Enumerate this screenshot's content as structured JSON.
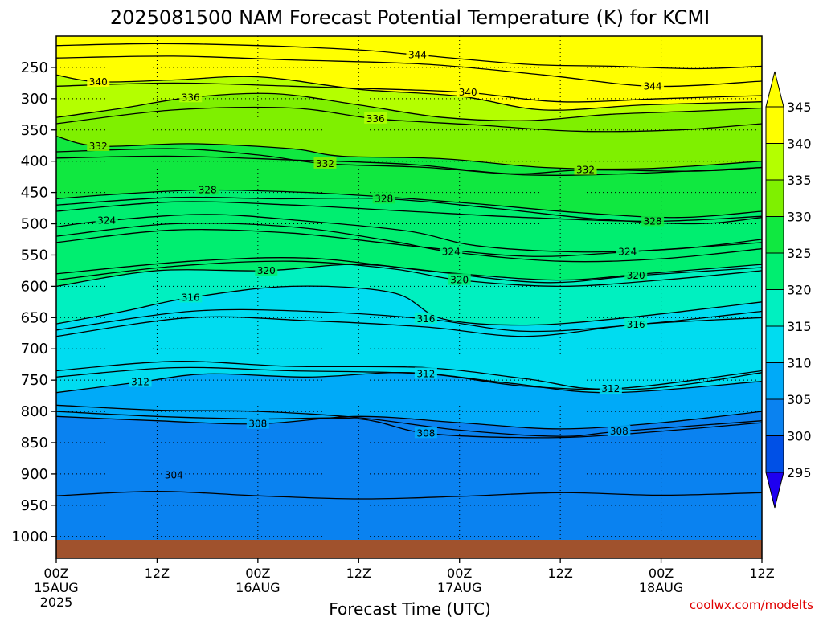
{
  "chart_data": {
    "type": "heatmap",
    "title": "2025081500 NAM Forecast Potential Temperature (K) for KCMI",
    "xlabel": "Forecast Time (UTC)",
    "ylabel": "",
    "credit": "coolwx.com/modelts",
    "x_ticks": [
      {
        "label": "00Z",
        "date": "15AUG",
        "year": "2025",
        "hours": 0
      },
      {
        "label": "12Z",
        "date": "",
        "year": "",
        "hours": 12
      },
      {
        "label": "00Z",
        "date": "16AUG",
        "year": "",
        "hours": 24
      },
      {
        "label": "12Z",
        "date": "",
        "year": "",
        "hours": 36
      },
      {
        "label": "00Z",
        "date": "17AUG",
        "year": "",
        "hours": 48
      },
      {
        "label": "12Z",
        "date": "",
        "year": "",
        "hours": 60
      },
      {
        "label": "00Z",
        "date": "18AUG",
        "year": "",
        "hours": 72
      },
      {
        "label": "12Z",
        "date": "",
        "year": "",
        "hours": 84
      }
    ],
    "y_ticks": [
      250,
      300,
      350,
      400,
      450,
      500,
      550,
      600,
      650,
      700,
      750,
      800,
      850,
      900,
      950,
      1000
    ],
    "y_range_hpa": [
      200,
      1035
    ],
    "x_range_hours": [
      0,
      84
    ],
    "grid": true,
    "colorbar": {
      "levels": [
        295,
        300,
        305,
        310,
        315,
        320,
        325,
        330,
        335,
        340,
        345
      ],
      "labels": [
        "295",
        "300",
        "305",
        "310",
        "315",
        "320",
        "325",
        "330",
        "335",
        "340",
        "345"
      ],
      "colors": [
        "#1e00f0",
        "#0050e6",
        "#0a82f0",
        "#00aaf8",
        "#00dcf0",
        "#00f0c0",
        "#00ee70",
        "#10e840",
        "#7ff000",
        "#b4ff00",
        "#ffff00",
        "#ffff00"
      ],
      "legend_position": "right"
    },
    "ground_color": "#a0522d",
    "contours": [
      {
        "value": 304,
        "label": "304",
        "hours": 14,
        "pressure": 902,
        "p": [
          [
            0,
            935
          ],
          [
            12,
            928
          ],
          [
            24,
            935
          ],
          [
            36,
            940
          ],
          [
            48,
            936
          ],
          [
            60,
            930
          ],
          [
            72,
            934
          ],
          [
            84,
            930
          ]
        ]
      },
      {
        "value": 308,
        "label": "308",
        "hours": 24,
        "pressure": 820,
        "p": [
          [
            0,
            808
          ],
          [
            12,
            815
          ],
          [
            24,
            820
          ],
          [
            36,
            808
          ],
          [
            48,
            818
          ],
          [
            60,
            828
          ],
          [
            72,
            818
          ],
          [
            84,
            800
          ]
        ]
      },
      {
        "value": 308,
        "label": "308",
        "hours": 44,
        "pressure": 835,
        "p": [
          [
            0,
            800
          ],
          [
            12,
            808
          ],
          [
            24,
            812
          ],
          [
            36,
            812
          ],
          [
            44,
            835
          ],
          [
            56,
            842
          ],
          [
            66,
            838
          ],
          [
            84,
            818
          ]
        ]
      },
      {
        "value": 308,
        "label": "308",
        "hours": 67,
        "pressure": 832,
        "p": [
          [
            0,
            790
          ],
          [
            12,
            798
          ],
          [
            24,
            800
          ],
          [
            36,
            810
          ],
          [
            48,
            830
          ],
          [
            60,
            840
          ],
          [
            67,
            832
          ],
          [
            84,
            815
          ]
        ]
      },
      {
        "value": 312,
        "label": "312",
        "hours": 10,
        "pressure": 753,
        "p": [
          [
            0,
            770
          ],
          [
            10,
            753
          ],
          [
            18,
            740
          ],
          [
            30,
            745
          ],
          [
            42,
            738
          ],
          [
            54,
            755
          ],
          [
            66,
            770
          ],
          [
            84,
            752
          ]
        ]
      },
      {
        "value": 312,
        "label": "312",
        "hours": 44,
        "pressure": 740,
        "p": [
          [
            0,
            745
          ],
          [
            14,
            730
          ],
          [
            28,
            735
          ],
          [
            44,
            740
          ],
          [
            56,
            760
          ],
          [
            70,
            764
          ],
          [
            84,
            738
          ]
        ]
      },
      {
        "value": 312,
        "label": "312",
        "hours": 66,
        "pressure": 764,
        "p": [
          [
            0,
            735
          ],
          [
            14,
            720
          ],
          [
            28,
            728
          ],
          [
            44,
            730
          ],
          [
            56,
            748
          ],
          [
            66,
            764
          ],
          [
            84,
            735
          ]
        ]
      },
      {
        "value": 316,
        "label": "316",
        "hours": 16,
        "pressure": 618,
        "p": [
          [
            0,
            660
          ],
          [
            8,
            640
          ],
          [
            16,
            618
          ],
          [
            28,
            600
          ],
          [
            40,
            610
          ],
          [
            46,
            652
          ],
          [
            56,
            662
          ],
          [
            68,
            650
          ],
          [
            84,
            625
          ]
        ]
      },
      {
        "value": 316,
        "label": "316",
        "hours": 44,
        "pressure": 652,
        "p": [
          [
            0,
            670
          ],
          [
            16,
            640
          ],
          [
            30,
            640
          ],
          [
            44,
            652
          ],
          [
            56,
            672
          ],
          [
            70,
            660
          ],
          [
            84,
            640
          ]
        ]
      },
      {
        "value": 316,
        "label": "316",
        "hours": 69,
        "pressure": 661,
        "p": [
          [
            0,
            680
          ],
          [
            16,
            650
          ],
          [
            30,
            655
          ],
          [
            44,
            665
          ],
          [
            56,
            680
          ],
          [
            69,
            661
          ],
          [
            84,
            650
          ]
        ]
      },
      {
        "value": 320,
        "label": "320",
        "hours": 25,
        "pressure": 575,
        "p": [
          [
            0,
            600
          ],
          [
            12,
            575
          ],
          [
            25,
            575
          ],
          [
            36,
            565
          ],
          [
            48,
            580
          ],
          [
            60,
            590
          ],
          [
            70,
            580
          ],
          [
            84,
            565
          ]
        ]
      },
      {
        "value": 320,
        "label": "320",
        "hours": 48,
        "pressure": 590,
        "p": [
          [
            0,
            590
          ],
          [
            14,
            568
          ],
          [
            28,
            560
          ],
          [
            40,
            572
          ],
          [
            48,
            590
          ],
          [
            60,
            600
          ],
          [
            72,
            590
          ],
          [
            84,
            575
          ]
        ]
      },
      {
        "value": 320,
        "label": "320",
        "hours": 69,
        "pressure": 583,
        "p": [
          [
            0,
            580
          ],
          [
            16,
            560
          ],
          [
            30,
            555
          ],
          [
            44,
            575
          ],
          [
            58,
            594
          ],
          [
            69,
            583
          ],
          [
            84,
            570
          ]
        ]
      },
      {
        "value": 324,
        "label": "324",
        "hours": 6,
        "pressure": 495,
        "p": [
          [
            0,
            505
          ],
          [
            6,
            495
          ],
          [
            18,
            485
          ],
          [
            30,
            496
          ],
          [
            42,
            512
          ],
          [
            50,
            535
          ],
          [
            62,
            545
          ],
          [
            74,
            540
          ],
          [
            84,
            525
          ]
        ]
      },
      {
        "value": 324,
        "label": "324",
        "hours": 47,
        "pressure": 545,
        "p": [
          [
            0,
            520
          ],
          [
            14,
            500
          ],
          [
            28,
            505
          ],
          [
            40,
            528
          ],
          [
            47,
            545
          ],
          [
            60,
            560
          ],
          [
            72,
            556
          ],
          [
            84,
            540
          ]
        ]
      },
      {
        "value": 324,
        "label": "324",
        "hours": 68,
        "pressure": 545,
        "p": [
          [
            0,
            530
          ],
          [
            14,
            510
          ],
          [
            28,
            515
          ],
          [
            42,
            535
          ],
          [
            56,
            552
          ],
          [
            68,
            545
          ],
          [
            84,
            530
          ]
        ]
      },
      {
        "value": 328,
        "label": "328",
        "hours": 18,
        "pressure": 446,
        "p": [
          [
            0,
            460
          ],
          [
            8,
            452
          ],
          [
            18,
            446
          ],
          [
            30,
            450
          ],
          [
            40,
            458
          ],
          [
            50,
            468
          ],
          [
            62,
            482
          ],
          [
            74,
            490
          ],
          [
            84,
            480
          ]
        ]
      },
      {
        "value": 328,
        "label": "328",
        "hours": 39,
        "pressure": 460,
        "p": [
          [
            0,
            470
          ],
          [
            14,
            458
          ],
          [
            26,
            460
          ],
          [
            39,
            460
          ],
          [
            52,
            475
          ],
          [
            64,
            492
          ],
          [
            76,
            500
          ],
          [
            84,
            490
          ]
        ]
      },
      {
        "value": 328,
        "label": "328",
        "hours": 71,
        "pressure": 496,
        "p": [
          [
            0,
            480
          ],
          [
            14,
            465
          ],
          [
            28,
            470
          ],
          [
            42,
            480
          ],
          [
            56,
            490
          ],
          [
            71,
            496
          ],
          [
            84,
            488
          ]
        ]
      },
      {
        "value": 332,
        "label": "332",
        "hours": 5,
        "pressure": 376,
        "p": [
          [
            0,
            360
          ],
          [
            5,
            376
          ],
          [
            16,
            372
          ],
          [
            28,
            380
          ],
          [
            34,
            392
          ],
          [
            46,
            396
          ],
          [
            58,
            410
          ],
          [
            70,
            412
          ],
          [
            84,
            400
          ]
        ]
      },
      {
        "value": 332,
        "label": "332",
        "hours": 32,
        "pressure": 404,
        "p": [
          [
            0,
            385
          ],
          [
            14,
            380
          ],
          [
            24,
            390
          ],
          [
            32,
            404
          ],
          [
            44,
            410
          ],
          [
            56,
            422
          ],
          [
            68,
            420
          ],
          [
            84,
            410
          ]
        ]
      },
      {
        "value": 332,
        "label": "332",
        "hours": 63,
        "pressure": 414,
        "p": [
          [
            0,
            395
          ],
          [
            14,
            392
          ],
          [
            28,
            398
          ],
          [
            42,
            405
          ],
          [
            54,
            420
          ],
          [
            63,
            414
          ],
          [
            76,
            416
          ],
          [
            84,
            410
          ]
        ]
      },
      {
        "value": 336,
        "label": "336",
        "hours": 16,
        "pressure": 298,
        "p": [
          [
            0,
            330
          ],
          [
            8,
            315
          ],
          [
            16,
            298
          ],
          [
            26,
            292
          ],
          [
            36,
            310
          ],
          [
            46,
            330
          ],
          [
            56,
            335
          ],
          [
            66,
            325
          ],
          [
            76,
            320
          ],
          [
            84,
            315
          ]
        ]
      },
      {
        "value": 336,
        "label": "336",
        "hours": 38,
        "pressure": 332,
        "p": [
          [
            0,
            340
          ],
          [
            14,
            318
          ],
          [
            28,
            315
          ],
          [
            38,
            332
          ],
          [
            50,
            342
          ],
          [
            62,
            352
          ],
          [
            74,
            350
          ],
          [
            84,
            340
          ]
        ]
      },
      {
        "value": 340,
        "label": "340",
        "hours": 5,
        "pressure": 273,
        "p": [
          [
            0,
            262
          ],
          [
            5,
            273
          ],
          [
            14,
            270
          ],
          [
            24,
            265
          ],
          [
            36,
            285
          ],
          [
            48,
            296
          ],
          [
            58,
            318
          ],
          [
            70,
            310
          ],
          [
            84,
            305
          ]
        ]
      },
      {
        "value": 340,
        "label": "340",
        "hours": 49,
        "pressure": 290,
        "p": [
          [
            0,
            280
          ],
          [
            14,
            275
          ],
          [
            28,
            280
          ],
          [
            40,
            285
          ],
          [
            49,
            290
          ],
          [
            60,
            305
          ],
          [
            72,
            300
          ],
          [
            84,
            295
          ]
        ]
      },
      {
        "value": 344,
        "label": "344",
        "hours": 43,
        "pressure": 230,
        "p": [
          [
            0,
            215
          ],
          [
            12,
            212
          ],
          [
            24,
            215
          ],
          [
            36,
            222
          ],
          [
            43,
            230
          ],
          [
            56,
            245
          ],
          [
            66,
            248
          ],
          [
            76,
            252
          ],
          [
            84,
            248
          ]
        ]
      },
      {
        "value": 344,
        "label": "344",
        "hours": 71,
        "pressure": 280,
        "p": [
          [
            0,
            235
          ],
          [
            14,
            232
          ],
          [
            28,
            238
          ],
          [
            44,
            245
          ],
          [
            58,
            262
          ],
          [
            71,
            280
          ],
          [
            84,
            272
          ]
        ]
      }
    ]
  }
}
